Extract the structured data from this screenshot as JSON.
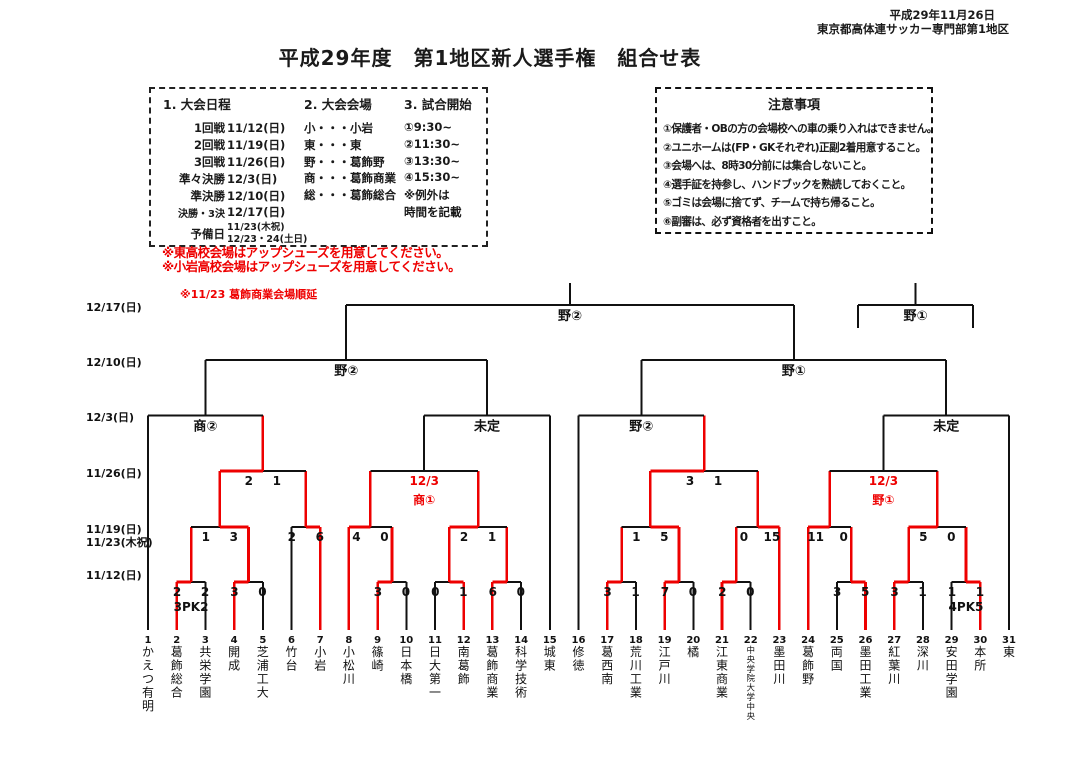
{
  "header": {
    "date_line": "平成29年11月26日",
    "org_line": "東京都高体連サッカー専門部第1地区",
    "title": "平成29年度　第1地区新人選手権　組合せ表"
  },
  "colors": {
    "red": "#ee0000",
    "black": "#1a1a1a"
  },
  "info_box": {
    "schedule_title": "1. 大会日程",
    "schedule": [
      {
        "label": "1回戦",
        "date": "11/12(日)"
      },
      {
        "label": "2回戦",
        "date": "11/19(日)"
      },
      {
        "label": "3回戦",
        "date": "11/26(日)"
      },
      {
        "label": "準々決勝",
        "date": "12/3(日)"
      },
      {
        "label": "準決勝",
        "date": "12/10(日)"
      },
      {
        "label": "決勝・3決",
        "date": "12/17(日)"
      },
      {
        "label": "予備日",
        "date": "11/23(木祝)",
        "date2": "12/23・24(土日)"
      }
    ],
    "venues_title": "2. 大会会場",
    "venues": [
      "小・・・小岩",
      "東・・・東",
      "野・・・葛飾野",
      "商・・・葛飾商業",
      "総・・・葛飾総合"
    ],
    "kickoff_title": "3. 試合開始",
    "kickoffs": [
      "①9:30~",
      "②11:30~",
      "③13:30~",
      "④15:30~",
      "※例外は",
      "時間を記載"
    ]
  },
  "notes_box": {
    "title": "注意事項",
    "items": [
      "①保護者・OBの方の会場校への車の乗り入れはできません。",
      "②ユニホームは(FP・GKそれぞれ)正副2着用意すること。",
      "③会場へは、8時30分前には集合しないこと。",
      "④選手証を持参し、ハンドブックを熟読しておくこと。",
      "⑤ゴミは会場に捨てず、チームで持ち帰ること。",
      "⑥副審は、必ず資格者を出すこと。"
    ]
  },
  "red_notes": [
    "※東高校会場はアップシューズを用意してください。",
    "※小岩高校会場はアップシューズを用意してください。"
  ],
  "red_note_small": "※11/23  葛飾商業会場順延",
  "chart_data": {
    "type": "tournament-bracket",
    "title": "平成29年度 第1地区新人選手権 組合せ表",
    "teams": [
      {
        "seed": 1,
        "name": "かえつ有明"
      },
      {
        "seed": 2,
        "name": "葛飾総合"
      },
      {
        "seed": 3,
        "name": "共栄学園"
      },
      {
        "seed": 4,
        "name": "開成"
      },
      {
        "seed": 5,
        "name": "芝浦工大"
      },
      {
        "seed": 6,
        "name": "竹台"
      },
      {
        "seed": 7,
        "name": "小岩"
      },
      {
        "seed": 8,
        "name": "小松川"
      },
      {
        "seed": 9,
        "name": "篠崎"
      },
      {
        "seed": 10,
        "name": "日本橋"
      },
      {
        "seed": 11,
        "name": "日大第一"
      },
      {
        "seed": 12,
        "name": "南葛飾"
      },
      {
        "seed": 13,
        "name": "葛飾商業"
      },
      {
        "seed": 14,
        "name": "科学技術"
      },
      {
        "seed": 15,
        "name": "城東"
      },
      {
        "seed": 16,
        "name": "修徳"
      },
      {
        "seed": 17,
        "name": "葛西南"
      },
      {
        "seed": 18,
        "name": "荒川工業"
      },
      {
        "seed": 19,
        "name": "江戸川"
      },
      {
        "seed": 20,
        "name": "橘"
      },
      {
        "seed": 21,
        "name": "江東商業"
      },
      {
        "seed": 22,
        "name": "中央学院大学中央"
      },
      {
        "seed": 23,
        "name": "墨田川"
      },
      {
        "seed": 24,
        "name": "葛飾野"
      },
      {
        "seed": 25,
        "name": "両国"
      },
      {
        "seed": 26,
        "name": "墨田工業"
      },
      {
        "seed": 27,
        "name": "紅葉川"
      },
      {
        "seed": 28,
        "name": "深川"
      },
      {
        "seed": 29,
        "name": "安田学園"
      },
      {
        "seed": 30,
        "name": "本所"
      },
      {
        "seed": 31,
        "name": "東"
      }
    ],
    "round_labels": [
      {
        "text": "12/17(日)",
        "row": "final"
      },
      {
        "text": "12/10(日)",
        "row": "sf"
      },
      {
        "text": "12/3(日)",
        "row": "qf"
      },
      {
        "text": "11/26(日)",
        "row": "r3"
      },
      {
        "text": "11/19(日)",
        "row": "r2a"
      },
      {
        "text": "11/23(木祝)",
        "row": "r2b"
      },
      {
        "text": "11/12(日)",
        "row": "r1"
      }
    ],
    "matches": [
      {
        "id": "m1",
        "round": 1,
        "left": {
          "team": 2
        },
        "right": {
          "team": 3
        },
        "score_left": "2",
        "score_right": "2",
        "pk": "3PK2",
        "winner": "left"
      },
      {
        "id": "m2",
        "round": 1,
        "left": {
          "team": 4
        },
        "right": {
          "team": 5
        },
        "score_left": "3",
        "score_right": "0",
        "winner": "left"
      },
      {
        "id": "m3",
        "round": 1,
        "left": {
          "team": 9
        },
        "right": {
          "team": 10
        },
        "score_left": "3",
        "score_right": "0",
        "winner": "left"
      },
      {
        "id": "m4",
        "round": 1,
        "left": {
          "team": 11
        },
        "right": {
          "team": 12
        },
        "score_left": "0",
        "score_right": "1",
        "winner": "right"
      },
      {
        "id": "m5",
        "round": 1,
        "left": {
          "team": 13
        },
        "right": {
          "team": 14
        },
        "score_left": "6",
        "score_right": "0",
        "winner": "left"
      },
      {
        "id": "m6",
        "round": 1,
        "left": {
          "team": 17
        },
        "right": {
          "team": 18
        },
        "score_left": "3",
        "score_right": "1",
        "winner": "left"
      },
      {
        "id": "m7",
        "round": 1,
        "left": {
          "team": 19
        },
        "right": {
          "team": 20
        },
        "score_left": "7",
        "score_right": "0",
        "winner": "left"
      },
      {
        "id": "m8",
        "round": 1,
        "left": {
          "team": 21
        },
        "right": {
          "team": 22
        },
        "score_left": "2",
        "score_right": "0",
        "winner": "left"
      },
      {
        "id": "m9",
        "round": 1,
        "left": {
          "team": 25
        },
        "right": {
          "team": 26
        },
        "score_left": "3",
        "score_right": "5",
        "winner": "right"
      },
      {
        "id": "m10",
        "round": 1,
        "left": {
          "team": 27
        },
        "right": {
          "team": 28
        },
        "score_left": "3",
        "score_right": "1",
        "winner": "left"
      },
      {
        "id": "m11",
        "round": 1,
        "left": {
          "team": 29
        },
        "right": {
          "team": 30
        },
        "score_left": "1",
        "score_right": "1",
        "pk": "4PK5",
        "winner": "right"
      },
      {
        "id": "m12",
        "round": 2,
        "left": {
          "match": "m1"
        },
        "right": {
          "match": "m2"
        },
        "score_left": "1",
        "score_right": "3",
        "winner": "right"
      },
      {
        "id": "m13",
        "round": 2,
        "left": {
          "team": 6
        },
        "right": {
          "team": 7
        },
        "score_left": "2",
        "score_right": "6",
        "winner": "right"
      },
      {
        "id": "m14",
        "round": 2,
        "left": {
          "team": 8
        },
        "right": {
          "match": "m3"
        },
        "score_left": "4",
        "score_right": "0",
        "winner": "left"
      },
      {
        "id": "m15",
        "round": 2,
        "left": {
          "match": "m4"
        },
        "right": {
          "match": "m5"
        },
        "score_left": "2",
        "score_right": "1",
        "winner": "left"
      },
      {
        "id": "m16",
        "round": 2,
        "left": {
          "match": "m6"
        },
        "right": {
          "match": "m7"
        },
        "score_left": "1",
        "score_right": "5",
        "winner": "right"
      },
      {
        "id": "m17",
        "round": 2,
        "left": {
          "match": "m8"
        },
        "right": {
          "team": 23
        },
        "score_left": "0",
        "score_right": "15",
        "winner": "right"
      },
      {
        "id": "m18",
        "round": 2,
        "left": {
          "team": 24
        },
        "right": {
          "match": "m9"
        },
        "score_left": "11",
        "score_right": "0",
        "winner": "left"
      },
      {
        "id": "m19",
        "round": 2,
        "left": {
          "match": "m10"
        },
        "right": {
          "match": "m11"
        },
        "score_left": "5",
        "score_right": "0",
        "winner": "left"
      },
      {
        "id": "m20",
        "round": 3,
        "left": {
          "match": "m12"
        },
        "right": {
          "match": "m13"
        },
        "score_left": "2",
        "score_right": "1",
        "winner": "left"
      },
      {
        "id": "m21",
        "round": 3,
        "left": {
          "match": "m14"
        },
        "right": {
          "match": "m15"
        },
        "postponed": [
          "12/3",
          "商①"
        ]
      },
      {
        "id": "m22",
        "round": 3,
        "left": {
          "match": "m16"
        },
        "right": {
          "match": "m17"
        },
        "score_left": "3",
        "score_right": "1",
        "winner": "left"
      },
      {
        "id": "m23",
        "round": 3,
        "left": {
          "match": "m18"
        },
        "right": {
          "match": "m19"
        },
        "postponed": [
          "12/3",
          "野①"
        ]
      },
      {
        "id": "m24",
        "round": 4,
        "left": {
          "team": 1
        },
        "right": {
          "match": "m20"
        },
        "venue": "商②"
      },
      {
        "id": "m25",
        "round": 4,
        "left": {
          "match": "m21"
        },
        "right": {
          "team": 15
        },
        "venue": "未定"
      },
      {
        "id": "m26",
        "round": 4,
        "left": {
          "team": 16
        },
        "right": {
          "match": "m22"
        },
        "venue": "野②"
      },
      {
        "id": "m27",
        "round": 4,
        "left": {
          "match": "m23"
        },
        "right": {
          "team": 31
        },
        "venue": "未定"
      },
      {
        "id": "m28",
        "round": 5,
        "left": {
          "match": "m24"
        },
        "right": {
          "match": "m25"
        },
        "venue": "野②"
      },
      {
        "id": "m29",
        "round": 5,
        "left": {
          "match": "m26"
        },
        "right": {
          "match": "m27"
        },
        "venue": "野①"
      },
      {
        "id": "m30",
        "round": 6,
        "left": {
          "match": "m28"
        },
        "right": {
          "match": "m29"
        },
        "venue": "野②"
      }
    ],
    "third_place": {
      "venue": "野①"
    }
  }
}
